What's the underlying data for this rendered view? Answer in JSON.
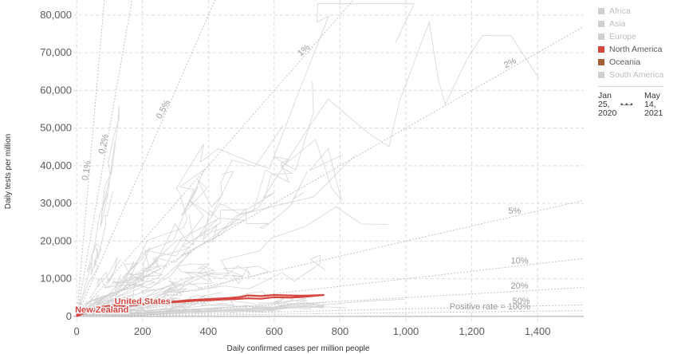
{
  "chart_data": {
    "type": "scatter",
    "xlabel": "Daily confirmed cases per million people",
    "ylabel": "Daily tests per million",
    "xlim": [
      -10,
      1540
    ],
    "ylim": [
      -1500,
      84000
    ],
    "x_ticks": [
      0,
      200,
      400,
      600,
      800,
      1000,
      1200,
      1400
    ],
    "x_tick_labels": [
      "0",
      "200",
      "400",
      "600",
      "800",
      "1,000",
      "1,200",
      "1,400"
    ],
    "y_ticks": [
      0,
      10000,
      20000,
      30000,
      40000,
      50000,
      60000,
      70000,
      80000
    ],
    "y_tick_labels": [
      "0",
      "10,000",
      "20,000",
      "30,000",
      "40,000",
      "50,000",
      "60,000",
      "70,000",
      "80,000"
    ],
    "grid": true,
    "legend_position": "right",
    "positive_rate_lines": [
      {
        "label": "0.1%",
        "rate": 0.001
      },
      {
        "label": "0.2%",
        "rate": 0.002
      },
      {
        "label": "0.5%",
        "rate": 0.005
      },
      {
        "label": "1%",
        "rate": 0.01
      },
      {
        "label": "2%",
        "rate": 0.02
      },
      {
        "label": "5%",
        "rate": 0.05
      },
      {
        "label": "10%",
        "rate": 0.1
      },
      {
        "label": "20%",
        "rate": 0.2
      },
      {
        "label": "50%",
        "rate": 0.5
      },
      {
        "label": "Positive rate = 100%",
        "rate": 1.0
      }
    ],
    "series": [
      {
        "name": "United States",
        "color": "#d6453f",
        "x": [
          0,
          20,
          60,
          100,
          150,
          200,
          260,
          300,
          340,
          380,
          420,
          460,
          500,
          520,
          560,
          600,
          640,
          680,
          720,
          750,
          700,
          650,
          600,
          560,
          520,
          480,
          440,
          400,
          360,
          320,
          280,
          240,
          200,
          160,
          120,
          80,
          40
        ],
        "y": [
          0,
          800,
          1600,
          2300,
          2800,
          3200,
          3600,
          4000,
          4300,
          4500,
          4700,
          4900,
          5200,
          5600,
          5400,
          5700,
          5600,
          5500,
          5600,
          5700,
          5300,
          5000,
          5100,
          4700,
          4800,
          4600,
          4500,
          4300,
          4200,
          3900,
          3800,
          3600,
          3400,
          3200,
          3000,
          2600,
          2000
        ]
      },
      {
        "name": "New Zealand",
        "color": "#d6453f",
        "x": [
          0,
          2,
          5,
          8,
          4,
          1,
          3,
          6,
          10,
          14,
          7,
          2
        ],
        "y": [
          0,
          400,
          1200,
          900,
          1500,
          600,
          300,
          800,
          1400,
          1000,
          500,
          200
        ]
      }
    ],
    "labels": [
      {
        "text": "United States",
        "x": 115,
        "y": 3300
      },
      {
        "text": "New Zealand",
        "x": -5,
        "y": 1000
      }
    ]
  },
  "legend": {
    "items": [
      {
        "label": "Africa",
        "color": "#cfcfcf",
        "active": false
      },
      {
        "label": "Asia",
        "color": "#cfcfcf",
        "active": false
      },
      {
        "label": "Europe",
        "color": "#cfcfcf",
        "active": false
      },
      {
        "label": "North America",
        "color": "#d6453f",
        "active": true
      },
      {
        "label": "Oceania",
        "color": "#a5623c",
        "active": true
      },
      {
        "label": "South America",
        "color": "#cfcfcf",
        "active": false
      }
    ]
  },
  "timeline": {
    "start": [
      "Jan",
      "25,",
      "2020"
    ],
    "end": [
      "May",
      "14,",
      "2021"
    ],
    "arrow": "•–•–•"
  }
}
